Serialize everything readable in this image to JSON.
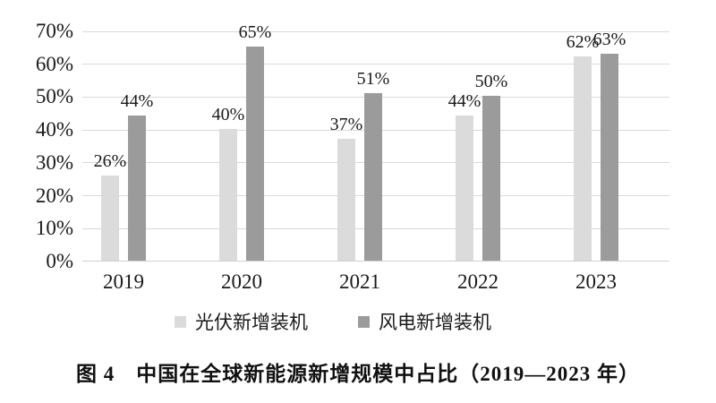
{
  "chart_data": {
    "type": "bar",
    "title": "",
    "xlabel": "",
    "ylabel": "",
    "categories": [
      "2019",
      "2020",
      "2021",
      "2022",
      "2023"
    ],
    "series": [
      {
        "name": "光伏新增装机",
        "color": "#dbdbdb",
        "values": [
          26,
          40,
          37,
          44,
          62
        ]
      },
      {
        "name": "风电新增装机",
        "color": "#9b9b9b",
        "values": [
          44,
          65,
          51,
          50,
          63
        ]
      }
    ],
    "value_label_format": "{v}%",
    "y_axis": {
      "min": 0,
      "max": 70,
      "step": 10,
      "tick_format": "{v}%"
    },
    "grid": true,
    "legend_position": "bottom",
    "colors": {
      "gridline": "#d9d9d9",
      "axis_line": "#cfcfcf",
      "text": "#1a1a1a"
    }
  },
  "caption": "图 4　中国在全球新能源新增规模中占比（2019—2023 年）"
}
